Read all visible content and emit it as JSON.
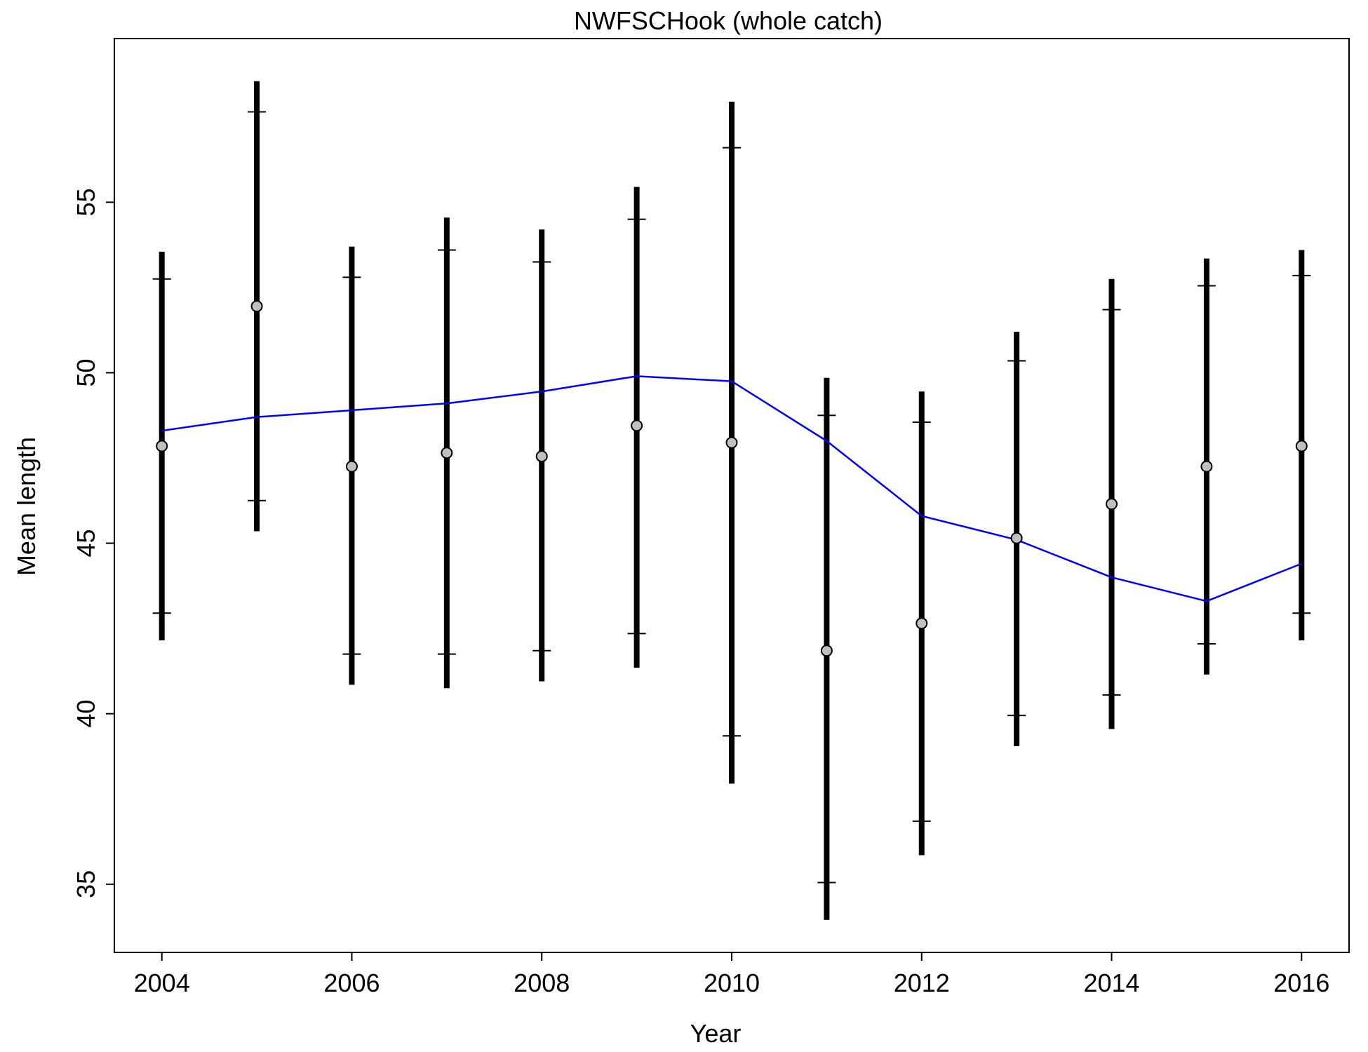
{
  "chart_data": {
    "type": "line",
    "title": "NWFSCHook (whole catch)",
    "xlabel": "Year",
    "ylabel": "Mean length",
    "xlim": [
      2003.5,
      2016.5
    ],
    "ylim": [
      33.0,
      59.8
    ],
    "xticks": [
      2004,
      2006,
      2008,
      2010,
      2012,
      2014,
      2016
    ],
    "yticks": [
      35,
      40,
      45,
      50,
      55
    ],
    "grid": false,
    "x": [
      2004,
      2005,
      2006,
      2007,
      2008,
      2009,
      2010,
      2011,
      2012,
      2013,
      2014,
      2015,
      2016
    ],
    "observed": [
      47.85,
      51.95,
      47.25,
      47.65,
      47.55,
      48.45,
      47.95,
      41.85,
      42.65,
      45.15,
      46.15,
      47.25,
      47.85
    ],
    "inner_lower": [
      42.95,
      46.25,
      41.75,
      41.75,
      41.85,
      42.35,
      39.35,
      35.05,
      36.85,
      39.95,
      40.55,
      42.05,
      42.95
    ],
    "inner_upper": [
      52.75,
      57.65,
      52.8,
      53.6,
      53.25,
      54.5,
      56.6,
      48.75,
      48.55,
      50.35,
      51.85,
      52.55,
      52.85
    ],
    "outer_lower": [
      42.15,
      45.35,
      40.85,
      40.75,
      40.95,
      41.35,
      37.95,
      33.95,
      35.85,
      39.05,
      39.55,
      41.15,
      42.15
    ],
    "outer_upper": [
      53.55,
      58.55,
      53.7,
      54.55,
      54.2,
      55.45,
      57.95,
      49.85,
      49.45,
      51.2,
      52.75,
      53.35,
      53.6
    ],
    "expected": [
      48.3,
      48.7,
      48.9,
      49.1,
      49.45,
      49.9,
      49.75,
      48.0,
      45.8,
      45.1,
      44.0,
      43.3,
      44.4
    ],
    "colors": {
      "expected_line": "#0000ff",
      "error_bar": "#000000",
      "point_fill": "#c0c0c0",
      "point_stroke": "#000000"
    }
  }
}
